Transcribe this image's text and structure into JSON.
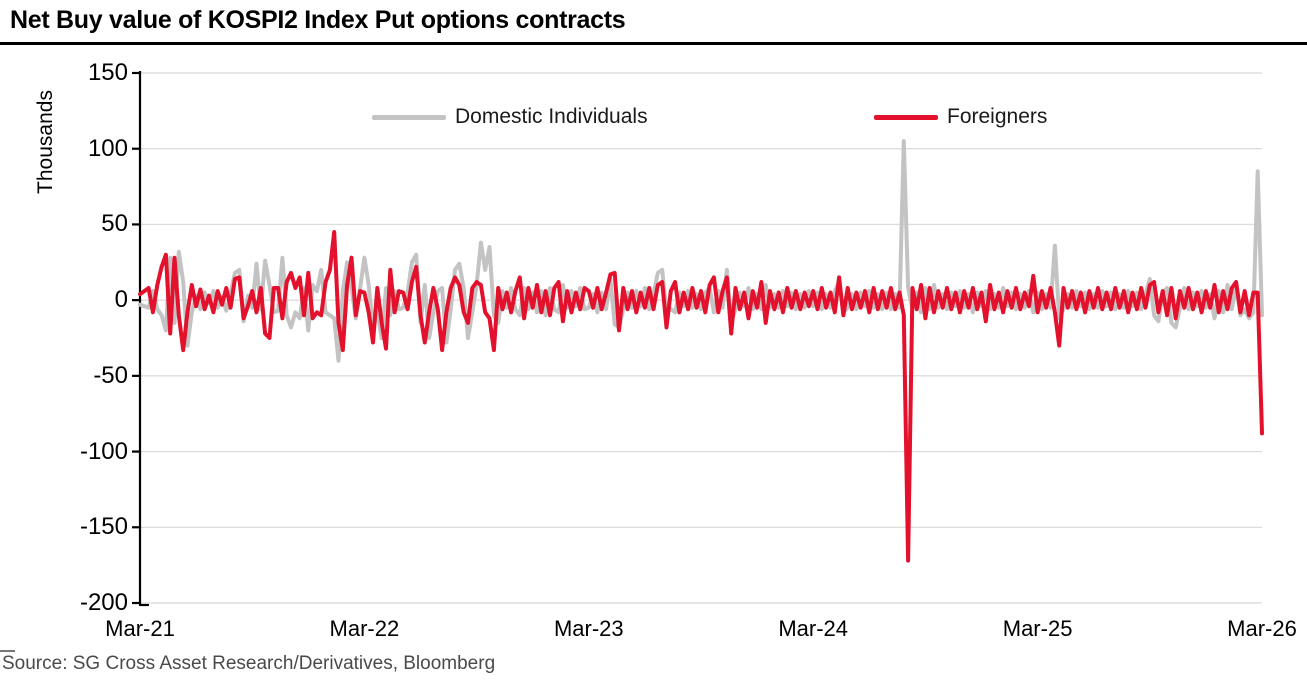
{
  "title": "Net Buy value of KOSPI2 Index Put options contracts",
  "source": "Source: SG Cross Asset Research/Derivatives, Bloomberg",
  "colors": {
    "foreigners_red": "#E3112C",
    "individuals_gray": "#C3C3C3",
    "gridline": "#DDDDDD",
    "axis": "#000000",
    "source_text": "#4A4A4A"
  },
  "chart_data": {
    "type": "line",
    "title": "Net Buy value of KOSPI2 Index Put options contracts",
    "xlabel": "",
    "ylabel": "Thousands",
    "ylim": [
      -200,
      150
    ],
    "y_ticks": [
      150,
      100,
      50,
      0,
      -50,
      -100,
      -150,
      -200
    ],
    "x_ticks": [
      "Mar-21",
      "Mar-22",
      "Mar-23",
      "Mar-24",
      "Mar-25",
      "Mar-26"
    ],
    "x_unit": "weekly samples from Mar-21 to Mar-26 (261 points)",
    "grid": "horizontal",
    "legend_position": "top",
    "notable_points": [
      {
        "series": "Domestic Individuals",
        "x": "mid-2024",
        "value": 105
      },
      {
        "series": "Foreigners",
        "x": "mid-2024",
        "value": -172
      },
      {
        "series": "Foreigners",
        "x": "Feb-22",
        "value": 45
      },
      {
        "series": "Domestic Individuals",
        "x": "Mar-22",
        "value": -40
      },
      {
        "series": "Domestic Individuals",
        "x": "late-22",
        "value": 38
      },
      {
        "series": "Domestic Individuals",
        "x": "Mar-25",
        "value": 36
      },
      {
        "series": "Foreigners",
        "x": "Mar-25",
        "value": -30
      },
      {
        "series": "Domestic Individuals",
        "x": "Mar-26",
        "value": 85
      },
      {
        "series": "Foreigners",
        "x": "Mar-26",
        "value": -88
      }
    ],
    "series": [
      {
        "name": "Domestic Individuals",
        "color": "#C3C3C3",
        "values": [
          -3,
          -4,
          -5,
          6,
          -6,
          -10,
          -20,
          28,
          -15,
          32,
          12,
          -30,
          -8,
          3,
          -6,
          5,
          -2,
          6,
          -5,
          2,
          -7,
          4,
          18,
          20,
          -14,
          3,
          -5,
          24,
          -6,
          26,
          10,
          -8,
          -7,
          28,
          -10,
          -18,
          -8,
          -12,
          8,
          -20,
          10,
          6,
          20,
          -8,
          -10,
          -12,
          -40,
          6,
          25,
          8,
          -12,
          8,
          28,
          10,
          -18,
          -8,
          -25,
          8,
          -10,
          6,
          -6,
          -5,
          5,
          25,
          30,
          -15,
          10,
          -25,
          -8,
          6,
          8,
          -28,
          -6,
          20,
          24,
          8,
          -25,
          -8,
          10,
          38,
          20,
          35,
          -10,
          -15,
          6,
          -5,
          8,
          -6,
          -10,
          8,
          -6,
          5,
          -8,
          6,
          -10,
          8,
          -6,
          -8,
          10,
          -5,
          6,
          -4,
          8,
          -6,
          -5,
          4,
          -8,
          5,
          -6,
          14,
          -16,
          -18,
          -6,
          5,
          -5,
          6,
          -4,
          8,
          -6,
          4,
          18,
          20,
          -8,
          -6,
          -8,
          5,
          -4,
          6,
          -5,
          4,
          -6,
          5,
          8,
          -8,
          6,
          -5,
          20,
          -15,
          -6,
          5,
          -4,
          8,
          -6,
          4,
          -6,
          10,
          -5,
          4,
          -5,
          6,
          -4,
          5,
          -6,
          4,
          -5,
          6,
          -4,
          5,
          -6,
          4,
          -5,
          6,
          12,
          -8,
          -5,
          4,
          -6,
          5,
          -4,
          6,
          -5,
          4,
          -6,
          5,
          -6,
          4,
          -5,
          105,
          8,
          -6,
          5,
          -8,
          8,
          -6,
          10,
          -5,
          4,
          -6,
          5,
          -4,
          6,
          -5,
          4,
          -8,
          5,
          -4,
          6,
          -6,
          4,
          -5,
          8,
          -4,
          5,
          -6,
          4,
          -5,
          6,
          -8,
          5,
          -6,
          4,
          -5,
          36,
          -12,
          -6,
          4,
          -5,
          6,
          -4,
          5,
          -6,
          4,
          -5,
          6,
          -4,
          5,
          -6,
          4,
          -5,
          6,
          -4,
          5,
          -6,
          4,
          14,
          -10,
          -14,
          5,
          8,
          -15,
          -18,
          -5,
          8,
          -6,
          5,
          -4,
          6,
          -5,
          4,
          -12,
          6,
          -8,
          10,
          -6,
          10,
          -10,
          -6,
          -12,
          -8,
          85,
          -10
        ]
      },
      {
        "name": "Foreigners",
        "color": "#E3112C",
        "values": [
          4,
          6,
          8,
          -8,
          10,
          22,
          30,
          -22,
          28,
          -10,
          -33,
          -8,
          10,
          -4,
          7,
          -6,
          3,
          -8,
          6,
          -3,
          8,
          -5,
          14,
          15,
          -12,
          -4,
          6,
          -8,
          8,
          -22,
          -25,
          8,
          8,
          -12,
          12,
          18,
          8,
          15,
          -10,
          18,
          -12,
          -8,
          -10,
          12,
          20,
          45,
          -15,
          -33,
          10,
          28,
          -10,
          6,
          5,
          -8,
          -28,
          8,
          -15,
          -32,
          20,
          -8,
          6,
          5,
          -6,
          12,
          22,
          -10,
          -28,
          -8,
          8,
          -6,
          -33,
          -8,
          8,
          15,
          10,
          -8,
          -15,
          8,
          12,
          10,
          -8,
          -12,
          -33,
          8,
          -6,
          5,
          -8,
          6,
          15,
          -12,
          8,
          -5,
          10,
          -8,
          6,
          -10,
          8,
          12,
          -14,
          6,
          -8,
          5,
          -6,
          8,
          6,
          -5,
          8,
          -6,
          5,
          17,
          18,
          -20,
          8,
          -6,
          6,
          -8,
          5,
          -5,
          8,
          -6,
          10,
          12,
          -18,
          6,
          12,
          -8,
          5,
          -6,
          8,
          -5,
          6,
          -8,
          10,
          15,
          -8,
          6,
          15,
          -22,
          8,
          -6,
          5,
          -12,
          6,
          -5,
          12,
          -15,
          6,
          -6,
          5,
          -8,
          8,
          -5,
          6,
          -6,
          5,
          -4,
          6,
          -6,
          8,
          -5,
          5,
          -8,
          15,
          -10,
          8,
          -6,
          5,
          -5,
          6,
          -8,
          8,
          -6,
          6,
          -5,
          8,
          -6,
          5,
          -10,
          -172,
          8,
          -6,
          10,
          -12,
          8,
          -8,
          6,
          -5,
          8,
          -6,
          5,
          -8,
          6,
          -5,
          8,
          -6,
          5,
          -14,
          10,
          -6,
          5,
          -8,
          6,
          -5,
          8,
          -6,
          5,
          -4,
          16,
          -8,
          6,
          -5,
          8,
          -8,
          -30,
          8,
          -5,
          6,
          -6,
          5,
          -8,
          6,
          -5,
          8,
          -6,
          5,
          -6,
          8,
          -5,
          6,
          -8,
          5,
          -6,
          8,
          -5,
          10,
          12,
          -8,
          6,
          -10,
          8,
          -12,
          6,
          -5,
          8,
          -6,
          5,
          -8,
          6,
          -5,
          10,
          -8,
          6,
          -6,
          8,
          12,
          -8,
          6,
          -10,
          5,
          5,
          -88
        ]
      }
    ]
  }
}
